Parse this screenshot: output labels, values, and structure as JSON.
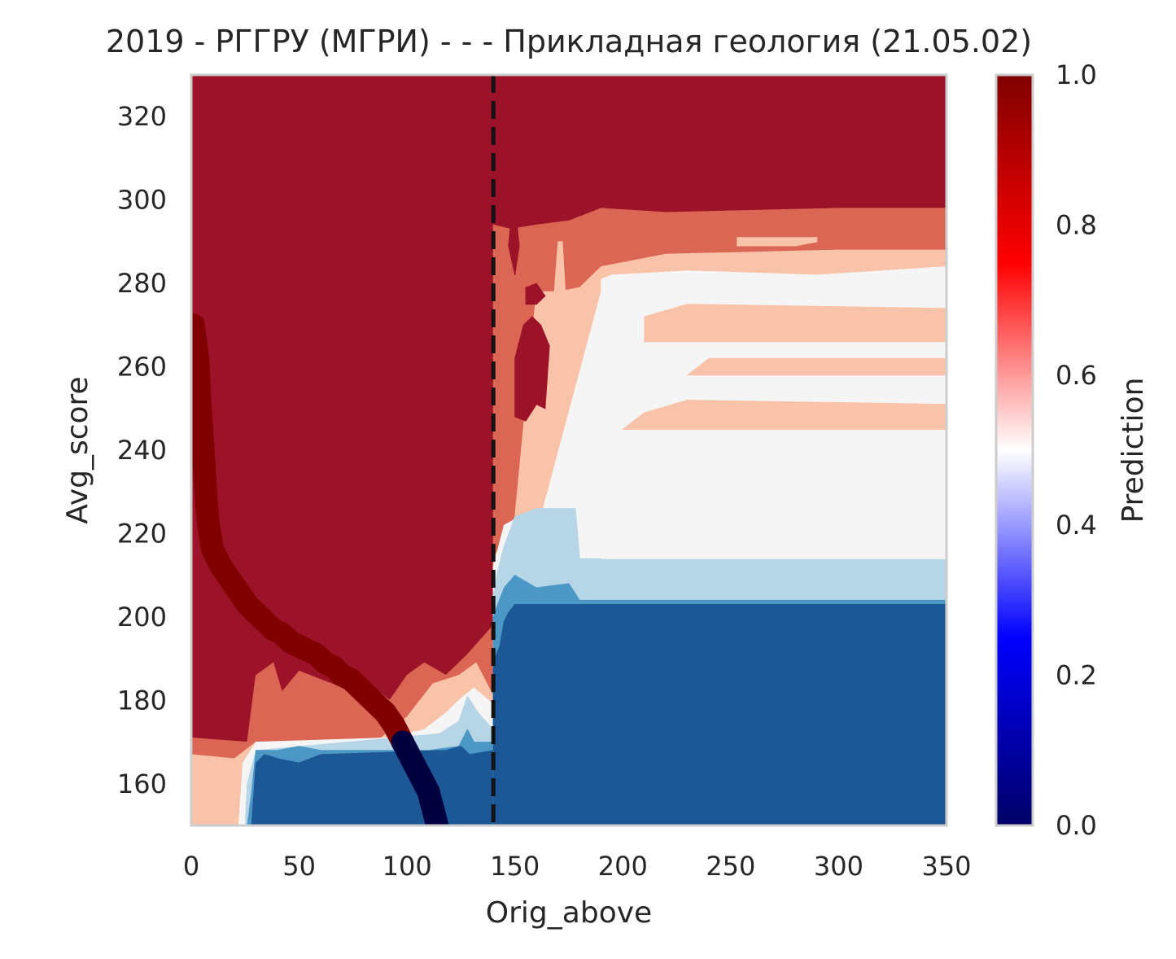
{
  "chart_data": {
    "type": "heatmap",
    "title": "2019 - РГГРУ (МГРИ) - - - Прикладная геология (21.05.02)",
    "xlabel": "Orig_above",
    "ylabel": "Avg_score",
    "xlim": [
      0,
      350
    ],
    "ylim": [
      150,
      330
    ],
    "xticks": [
      0,
      50,
      100,
      150,
      200,
      250,
      300,
      350
    ],
    "yticks": [
      160,
      180,
      200,
      220,
      240,
      260,
      280,
      300,
      320
    ],
    "grid": false,
    "vline_x": 140,
    "colorbar": {
      "label": "Prediction",
      "range": [
        0,
        1
      ],
      "ticks": [
        "0.0",
        "0.2",
        "0.4",
        "0.6",
        "0.8",
        "1.0"
      ],
      "colors": [
        "#000066",
        "#0000ff",
        "#ffffff",
        "#ff0000",
        "#800000"
      ]
    },
    "level_colors": [
      "#1c5796",
      "#4b97c5",
      "#b6d5e7",
      "#f5f5f5",
      "#f8c3a8",
      "#da6653",
      "#9c1228"
    ],
    "regions": [
      {
        "level": 6,
        "poly": [
          [
            0,
            150
          ],
          [
            350,
            150
          ],
          [
            350,
            330
          ],
          [
            0,
            330
          ]
        ]
      },
      {
        "level": 5,
        "poly": [
          [
            0,
            150
          ],
          [
            140,
            150
          ],
          [
            140,
            198
          ],
          [
            128,
            191
          ],
          [
            118,
            186
          ],
          [
            108,
            189
          ],
          [
            100,
            186
          ],
          [
            92,
            180
          ],
          [
            80,
            185
          ],
          [
            70,
            183
          ],
          [
            50,
            187
          ],
          [
            42,
            182
          ],
          [
            38,
            189
          ],
          [
            30,
            186
          ],
          [
            26,
            170
          ],
          [
            0,
            171
          ]
        ]
      },
      {
        "level": 4,
        "poly": [
          [
            0,
            150
          ],
          [
            140,
            150
          ],
          [
            140,
            181
          ],
          [
            132,
            189
          ],
          [
            124,
            186
          ],
          [
            112,
            184
          ],
          [
            100,
            176
          ],
          [
            88,
            171
          ],
          [
            70,
            170
          ],
          [
            30,
            170
          ],
          [
            20,
            166
          ],
          [
            0,
            167
          ]
        ]
      },
      {
        "level": 3,
        "poly": [
          [
            20,
            150
          ],
          [
            140,
            150
          ],
          [
            140,
            179
          ],
          [
            131,
            183
          ],
          [
            124,
            180
          ],
          [
            118,
            177
          ],
          [
            108,
            173
          ],
          [
            92,
            171
          ],
          [
            30,
            170
          ],
          [
            24,
            165
          ],
          [
            22,
            150
          ]
        ]
      },
      {
        "level": 2,
        "poly": [
          [
            25,
            150
          ],
          [
            140,
            150
          ],
          [
            140,
            173
          ],
          [
            133,
            177
          ],
          [
            128,
            181
          ],
          [
            124,
            175
          ],
          [
            115,
            172
          ],
          [
            30,
            168
          ],
          [
            26,
            160
          ]
        ]
      },
      {
        "level": 1,
        "poly": [
          [
            26,
            150
          ],
          [
            140,
            150
          ],
          [
            140,
            170
          ],
          [
            131,
            170
          ],
          [
            128,
            173
          ],
          [
            124,
            169
          ],
          [
            110,
            168
          ],
          [
            60,
            168
          ],
          [
            50,
            169
          ],
          [
            40,
            168
          ],
          [
            30,
            168
          ],
          [
            28,
            158
          ]
        ]
      },
      {
        "level": 0,
        "poly": [
          [
            28,
            150
          ],
          [
            140,
            150
          ],
          [
            140,
            168
          ],
          [
            129,
            167
          ],
          [
            125,
            169
          ],
          [
            118,
            168
          ],
          [
            60,
            167
          ],
          [
            50,
            165
          ],
          [
            40,
            166
          ],
          [
            34,
            167
          ],
          [
            30,
            165
          ]
        ]
      },
      {
        "level": 5,
        "poly": [
          [
            140,
            150
          ],
          [
            350,
            150
          ],
          [
            350,
            298
          ],
          [
            300,
            298
          ],
          [
            220,
            297
          ],
          [
            190,
            298
          ],
          [
            175,
            295
          ],
          [
            160,
            294
          ],
          [
            148,
            293
          ],
          [
            140,
            294
          ]
        ]
      },
      {
        "level": 4,
        "poly": [
          [
            140,
            150
          ],
          [
            350,
            150
          ],
          [
            350,
            288
          ],
          [
            300,
            288
          ],
          [
            220,
            287
          ],
          [
            190,
            284
          ],
          [
            180,
            279
          ],
          [
            170,
            278
          ],
          [
            160,
            278
          ],
          [
            150,
            224
          ],
          [
            145,
            219
          ],
          [
            140,
            214
          ]
        ]
      },
      {
        "level": 3,
        "poly": [
          [
            140,
            150
          ],
          [
            350,
            150
          ],
          [
            350,
            284
          ],
          [
            290,
            282
          ],
          [
            230,
            283
          ],
          [
            195,
            282
          ],
          [
            190,
            281
          ],
          [
            190,
            278
          ],
          [
            160,
            220
          ],
          [
            152,
            224
          ],
          [
            145,
            222
          ],
          [
            140,
            212
          ]
        ]
      },
      {
        "level": 2,
        "poly": [
          [
            140,
            150
          ],
          [
            350,
            150
          ],
          [
            350,
            214
          ],
          [
            180,
            214
          ],
          [
            178,
            226
          ],
          [
            160,
            226
          ],
          [
            150,
            224
          ],
          [
            145,
            217
          ],
          [
            142,
            211
          ],
          [
            140,
            205
          ]
        ]
      },
      {
        "level": 1,
        "poly": [
          [
            140,
            150
          ],
          [
            350,
            150
          ],
          [
            350,
            204
          ],
          [
            180,
            204
          ],
          [
            175,
            208
          ],
          [
            160,
            207
          ],
          [
            150,
            210
          ],
          [
            145,
            207
          ],
          [
            142,
            203
          ],
          [
            140,
            200
          ]
        ]
      },
      {
        "level": 0,
        "poly": [
          [
            140,
            150
          ],
          [
            350,
            150
          ],
          [
            350,
            203
          ],
          [
            150,
            203
          ],
          [
            147,
            201
          ],
          [
            145,
            199
          ],
          [
            143,
            193
          ],
          [
            140,
            189
          ]
        ]
      }
    ],
    "overlays": [
      {
        "level": 3,
        "poly": [
          [
            190,
            214
          ],
          [
            350,
            214
          ],
          [
            350,
            245
          ],
          [
            225,
            245
          ],
          [
            200,
            243
          ],
          [
            190,
            240
          ]
        ]
      },
      {
        "level": 4,
        "poly": [
          [
            200,
            245
          ],
          [
            350,
            245
          ],
          [
            350,
            251
          ],
          [
            230,
            252
          ],
          [
            210,
            249
          ]
        ]
      },
      {
        "level": 4,
        "poly": [
          [
            230,
            258
          ],
          [
            350,
            258
          ],
          [
            350,
            262
          ],
          [
            240,
            262
          ]
        ]
      },
      {
        "level": 4,
        "poly": [
          [
            210,
            266
          ],
          [
            350,
            266
          ],
          [
            350,
            274
          ],
          [
            230,
            275
          ],
          [
            210,
            272
          ]
        ]
      },
      {
        "level": 3,
        "poly": [
          [
            255,
            276
          ],
          [
            290,
            276
          ],
          [
            292,
            281
          ],
          [
            255,
            281
          ]
        ]
      },
      {
        "level": 6,
        "poly": [
          [
            150,
            248
          ],
          [
            155,
            247
          ],
          [
            160,
            251
          ],
          [
            164,
            250
          ],
          [
            166,
            265
          ],
          [
            162,
            270
          ],
          [
            158,
            272
          ],
          [
            154,
            270
          ],
          [
            150,
            262
          ]
        ]
      },
      {
        "level": 6,
        "poly": [
          [
            155,
            275
          ],
          [
            160,
            275
          ],
          [
            164,
            277
          ],
          [
            160,
            280
          ],
          [
            155,
            279
          ]
        ]
      },
      {
        "level": 6,
        "poly": [
          [
            150,
            282
          ],
          [
            152,
            289
          ],
          [
            151,
            294
          ],
          [
            148,
            294
          ],
          [
            147,
            289
          ]
        ]
      },
      {
        "level": 4,
        "poly": [
          [
            170,
            262
          ],
          [
            172,
            262
          ],
          [
            174,
            272
          ],
          [
            172,
            290
          ],
          [
            170,
            290
          ],
          [
            168,
            276
          ]
        ]
      },
      {
        "level": 4,
        "poly": [
          [
            253,
            289
          ],
          [
            280,
            289
          ],
          [
            290,
            290
          ],
          [
            290,
            291
          ],
          [
            253,
            291
          ]
        ]
      }
    ],
    "trajectory_high": [
      [
        1,
        270
      ],
      [
        3,
        262
      ],
      [
        4,
        252
      ],
      [
        5,
        244
      ],
      [
        6,
        236
      ],
      [
        7,
        228
      ],
      [
        8,
        222
      ],
      [
        10,
        216
      ],
      [
        14,
        212
      ],
      [
        18,
        209
      ],
      [
        22,
        206
      ],
      [
        26,
        203
      ],
      [
        30,
        201
      ],
      [
        34,
        199
      ],
      [
        38,
        197
      ],
      [
        42,
        196
      ],
      [
        46,
        194
      ],
      [
        50,
        193
      ],
      [
        54,
        192
      ],
      [
        58,
        191
      ],
      [
        62,
        189
      ],
      [
        66,
        188
      ],
      [
        70,
        186
      ],
      [
        74,
        185
      ],
      [
        78,
        183
      ],
      [
        82,
        181
      ],
      [
        86,
        179
      ],
      [
        90,
        177
      ],
      [
        94,
        174
      ],
      [
        96,
        172
      ],
      [
        98,
        170
      ]
    ],
    "trajectory_low": [
      [
        98,
        170
      ],
      [
        100,
        168
      ],
      [
        102,
        166
      ],
      [
        104,
        164
      ],
      [
        106,
        162
      ],
      [
        108,
        160
      ],
      [
        110,
        158
      ],
      [
        111,
        156
      ],
      [
        112,
        154
      ],
      [
        113,
        152
      ],
      [
        114,
        150
      ]
    ]
  }
}
